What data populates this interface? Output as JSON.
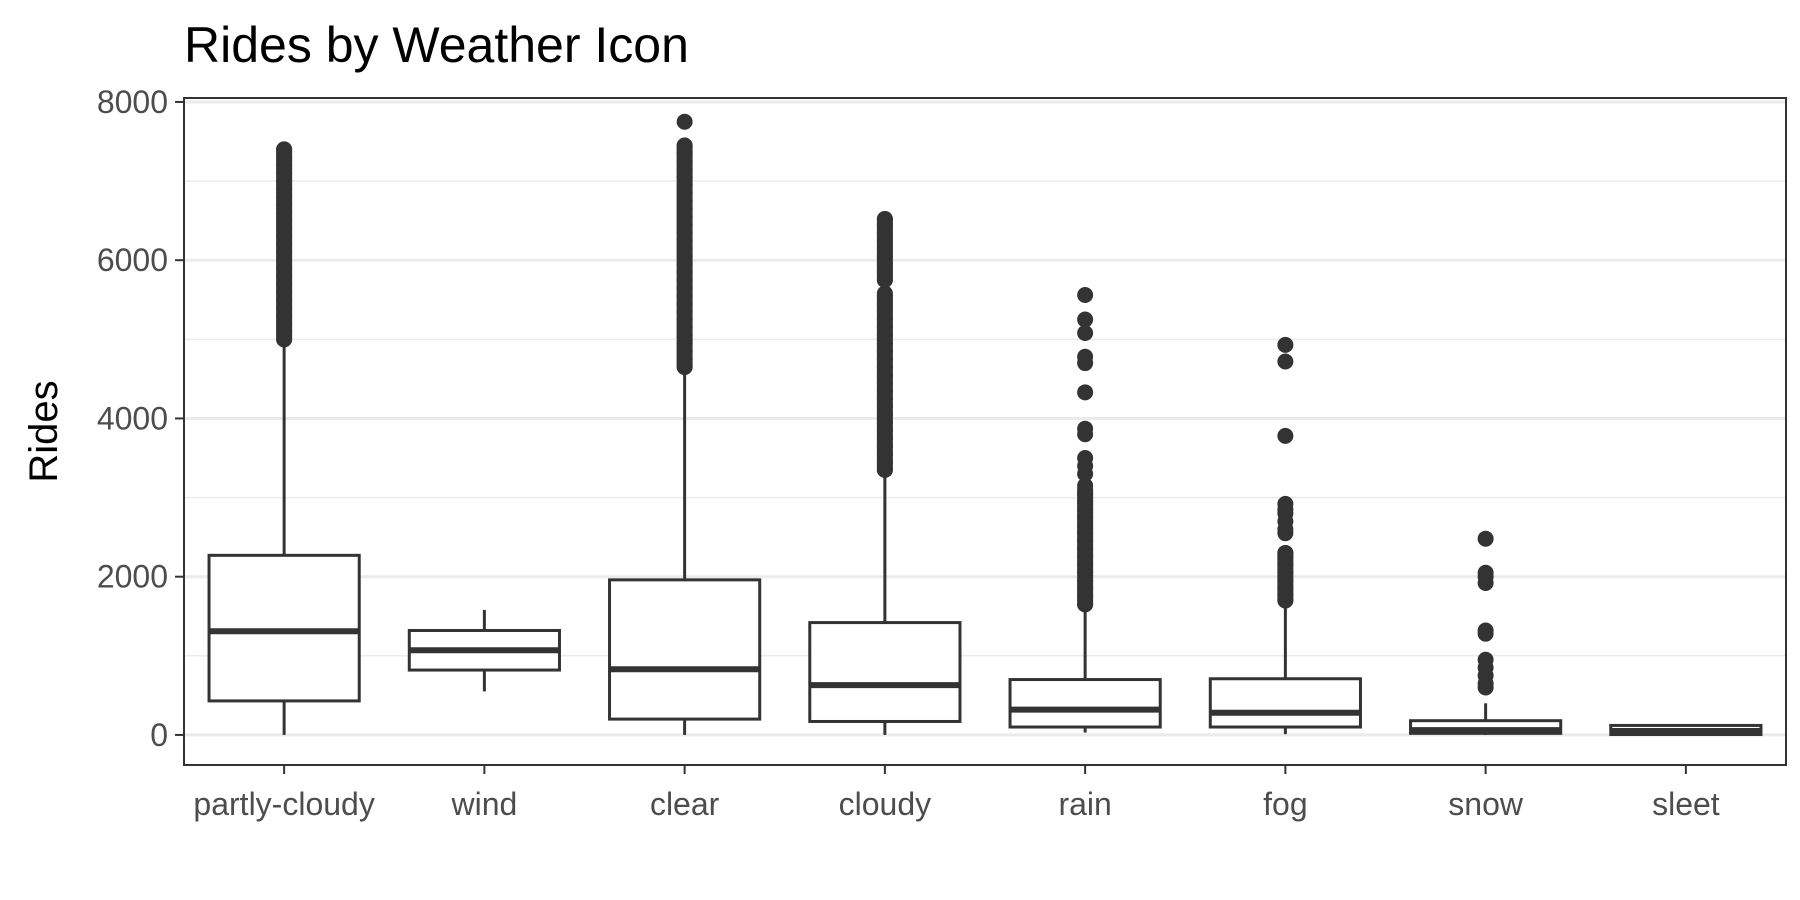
{
  "chart_data": {
    "type": "box",
    "title": "Rides by Weather Icon",
    "xlabel": "",
    "ylabel": "Rides",
    "ylim": [
      -380,
      8050
    ],
    "y_ticks": [
      0,
      2000,
      4000,
      6000,
      8000
    ],
    "grid": "horizontal major and minor",
    "legend": "none",
    "colors": {
      "box_stroke": "#333333",
      "outlier": "#333333",
      "grid": "#ebebeb",
      "panel_border": "#333333",
      "background": "#ffffff"
    },
    "categories": [
      "partly-cloudy",
      "wind",
      "clear",
      "cloudy",
      "rain",
      "fog",
      "snow",
      "sleet"
    ],
    "boxes": [
      {
        "name": "partly-cloudy",
        "whisker_low": 0,
        "q1": 430,
        "median": 1310,
        "q3": 2270,
        "whisker_high": 4960,
        "outliers": [
          5000,
          5100,
          5200,
          5300,
          5400,
          5500,
          5600,
          5700,
          5800,
          5900,
          6000,
          6100,
          6200,
          6300,
          6400,
          6500,
          6600,
          6700,
          6800,
          6900,
          7000,
          7100,
          7200,
          7300,
          7400
        ],
        "outlier_bands": [
          [
            5000,
            7400
          ]
        ]
      },
      {
        "name": "wind",
        "whisker_low": 550,
        "q1": 820,
        "median": 1070,
        "q3": 1320,
        "whisker_high": 1580,
        "outliers": [],
        "outlier_bands": []
      },
      {
        "name": "clear",
        "whisker_low": 0,
        "q1": 200,
        "median": 830,
        "q3": 1960,
        "whisker_high": 4600,
        "outliers": [
          4650,
          4750,
          4850,
          4950,
          5050,
          5150,
          5250,
          5350,
          5450,
          5550,
          5650,
          5750,
          5850,
          5950,
          6050,
          6150,
          6250,
          6350,
          6450,
          6550,
          6650,
          6750,
          6850,
          6950,
          7050,
          7150,
          7250,
          7350,
          7450,
          7750
        ],
        "outlier_bands": [
          [
            4650,
            7450
          ]
        ]
      },
      {
        "name": "cloudy",
        "whisker_low": 0,
        "q1": 170,
        "median": 630,
        "q3": 1420,
        "whisker_high": 3300,
        "outliers": [
          3350,
          3450,
          3550,
          3650,
          3750,
          3850,
          3950,
          4050,
          4150,
          4250,
          4350,
          4450,
          4550,
          4650,
          4750,
          4850,
          4950,
          5050,
          5150,
          5250,
          5350,
          5450,
          5550,
          5750,
          5850,
          5950,
          6050,
          6150,
          6250,
          6350,
          6450,
          6520
        ],
        "outlier_bands": [
          [
            3350,
            5580
          ],
          [
            5750,
            6520
          ]
        ]
      },
      {
        "name": "rain",
        "whisker_low": 30,
        "q1": 100,
        "median": 320,
        "q3": 700,
        "whisker_high": 1600,
        "outliers": [
          1650,
          1750,
          1850,
          1950,
          2050,
          2150,
          2250,
          2350,
          2450,
          2550,
          2650,
          2750,
          2850,
          2950,
          3050,
          3150,
          3300,
          3400,
          3500,
          3800,
          3870,
          4330,
          4700,
          4780,
          5080,
          5250,
          5560
        ],
        "outlier_bands": [
          [
            1650,
            3100
          ]
        ]
      },
      {
        "name": "fog",
        "whisker_low": 10,
        "q1": 100,
        "median": 280,
        "q3": 710,
        "whisker_high": 1670,
        "outliers": [
          1700,
          1780,
          1850,
          1950,
          2050,
          2150,
          2250,
          2300,
          2550,
          2600,
          2700,
          2800,
          2850,
          2920,
          3780,
          4720,
          4930
        ],
        "outlier_bands": [
          [
            1700,
            2300
          ]
        ]
      },
      {
        "name": "snow",
        "whisker_low": 0,
        "q1": 20,
        "median": 60,
        "q3": 180,
        "whisker_high": 400,
        "outliers": [
          600,
          650,
          750,
          850,
          950,
          1280,
          1320,
          1920,
          2000,
          2050,
          2480
        ],
        "outlier_bands": []
      },
      {
        "name": "sleet",
        "whisker_low": 0,
        "q1": 5,
        "median": 50,
        "q3": 120,
        "whisker_high": 130,
        "outliers": [],
        "outlier_bands": []
      }
    ]
  }
}
